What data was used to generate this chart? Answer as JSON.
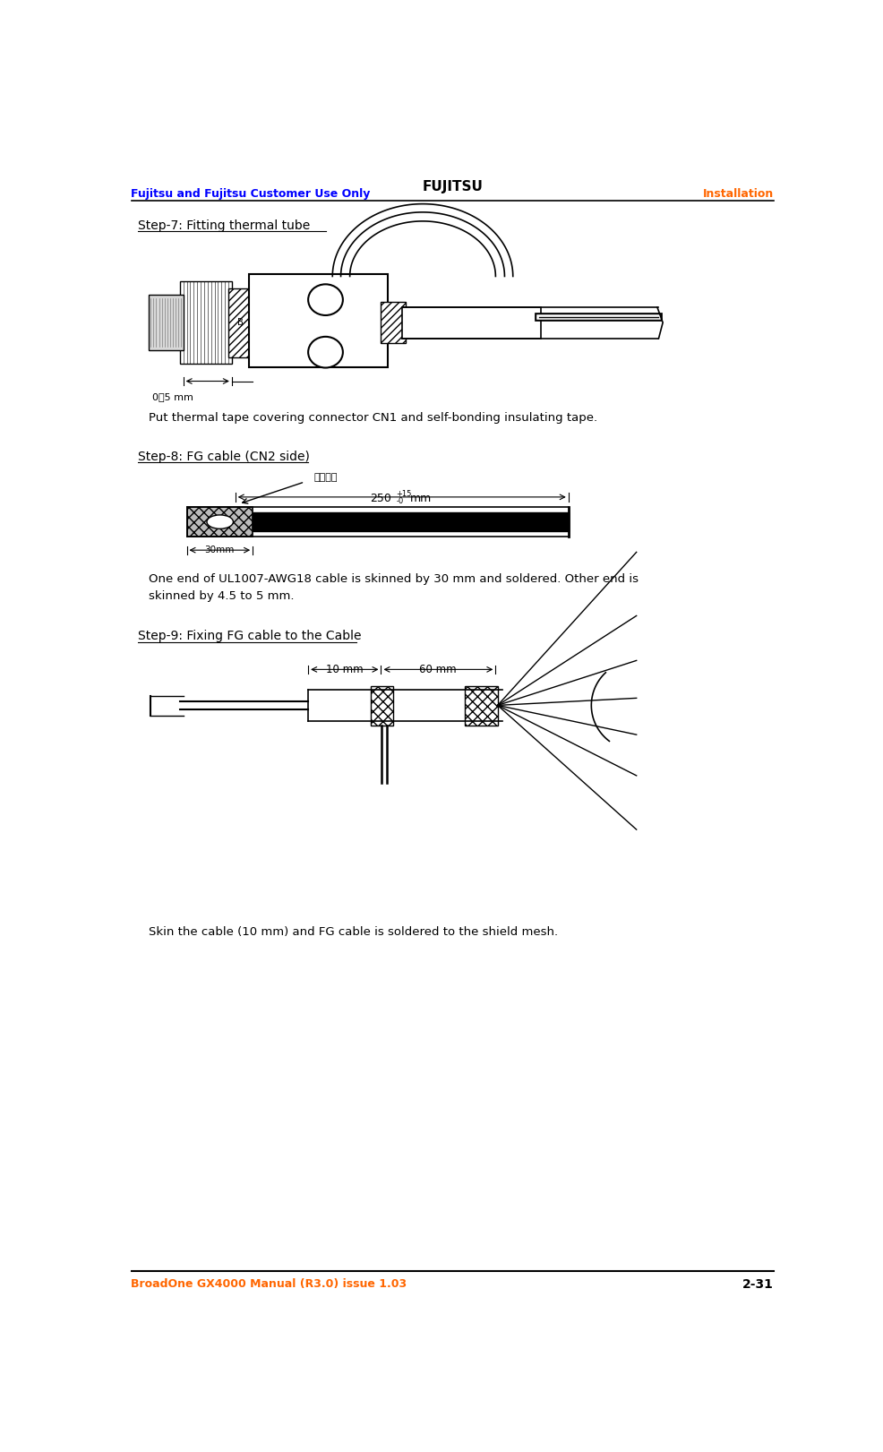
{
  "header_left": "Fujitsu and Fujitsu Customer Use Only",
  "header_center": "FUJITSU",
  "header_right": "Installation",
  "footer_left": "BroadOne GX4000 Manual (R3.0) issue 1.03",
  "footer_right": "2-31",
  "header_color": "#0000FF",
  "header_right_color": "#FF6600",
  "footer_color": "#FF6600",
  "footer_right_color": "#000000",
  "step7_title": "Step-7: Fitting thermal tube",
  "step7_desc": "Put thermal tape covering connector CN1 and self-bonding insulating tape.",
  "step8_title": "Step-8: FG cable (CN2 side)",
  "step8_desc": "One end of UL1007-AWG18 cable is skinned by 30 mm and soldered. Other end is\nskinned by 4.5 to 5 mm.",
  "step9_title": "Step-9: Fixing FG cable to the Cable",
  "step9_desc": "Skin the cable (10 mm) and FG cable is soldered to the shield mesh.",
  "bg_color": "#FFFFFF",
  "text_color": "#000000"
}
